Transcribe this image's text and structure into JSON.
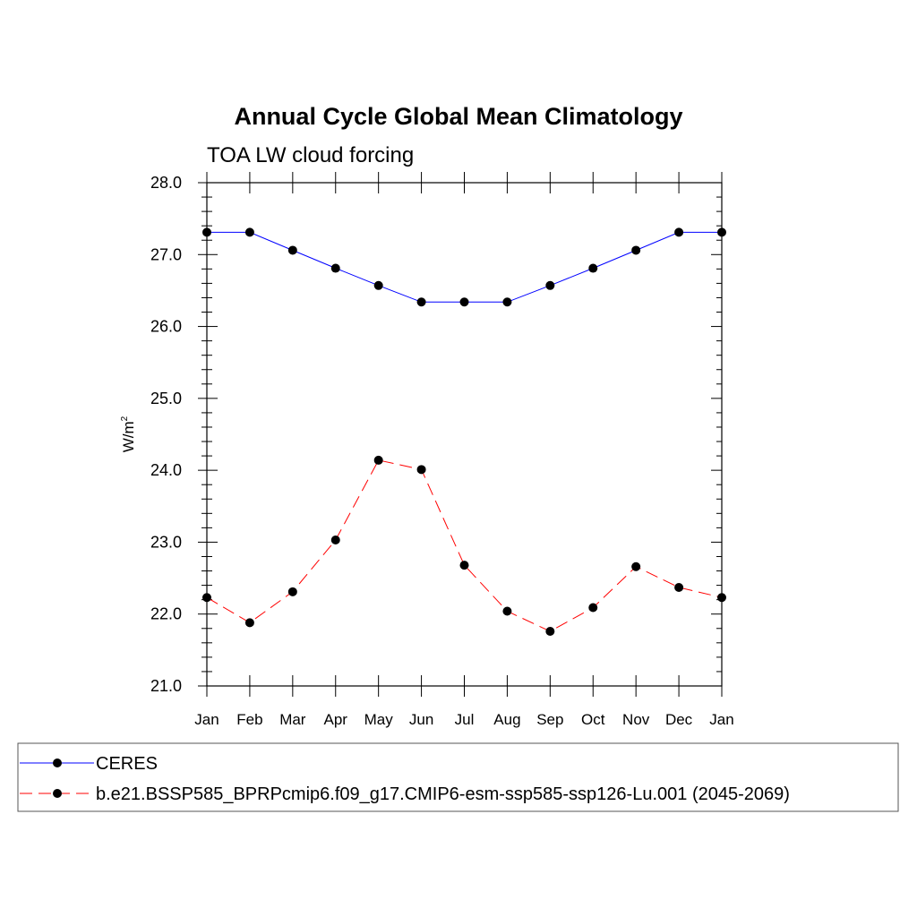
{
  "chart_data": {
    "type": "line",
    "title": "Annual Cycle Global Mean Climatology",
    "subtitle": "TOA LW cloud forcing",
    "ylabel": "W/m",
    "ylabel_superscript": "2",
    "xlabel": "",
    "categories": [
      "Jan",
      "Feb",
      "Mar",
      "Apr",
      "May",
      "Jun",
      "Jul",
      "Aug",
      "Sep",
      "Oct",
      "Nov",
      "Dec",
      "Jan"
    ],
    "ylim": [
      21.0,
      28.0
    ],
    "yticks": [
      "21.0",
      "22.0",
      "23.0",
      "24.0",
      "25.0",
      "26.0",
      "27.0",
      "28.0"
    ],
    "grid": false,
    "legend_position": "bottom",
    "series": [
      {
        "name": "CERES",
        "color": "#0000ff",
        "line_style": "solid",
        "marker": "filled-circle",
        "values": [
          27.31,
          27.31,
          27.06,
          26.81,
          26.57,
          26.34,
          26.34,
          26.34,
          26.57,
          26.81,
          27.06,
          27.31,
          27.31
        ]
      },
      {
        "name": "b.e21.BSSP585_BPRPcmip6.f09_g17.CMIP6-esm-ssp585-ssp126-Lu.001 (2045-2069)",
        "color": "#ff0000",
        "line_style": "dashed",
        "marker": "filled-circle",
        "values": [
          22.23,
          21.88,
          22.31,
          23.03,
          24.14,
          24.01,
          22.68,
          22.04,
          21.76,
          22.09,
          22.66,
          22.37,
          22.23
        ]
      }
    ]
  }
}
